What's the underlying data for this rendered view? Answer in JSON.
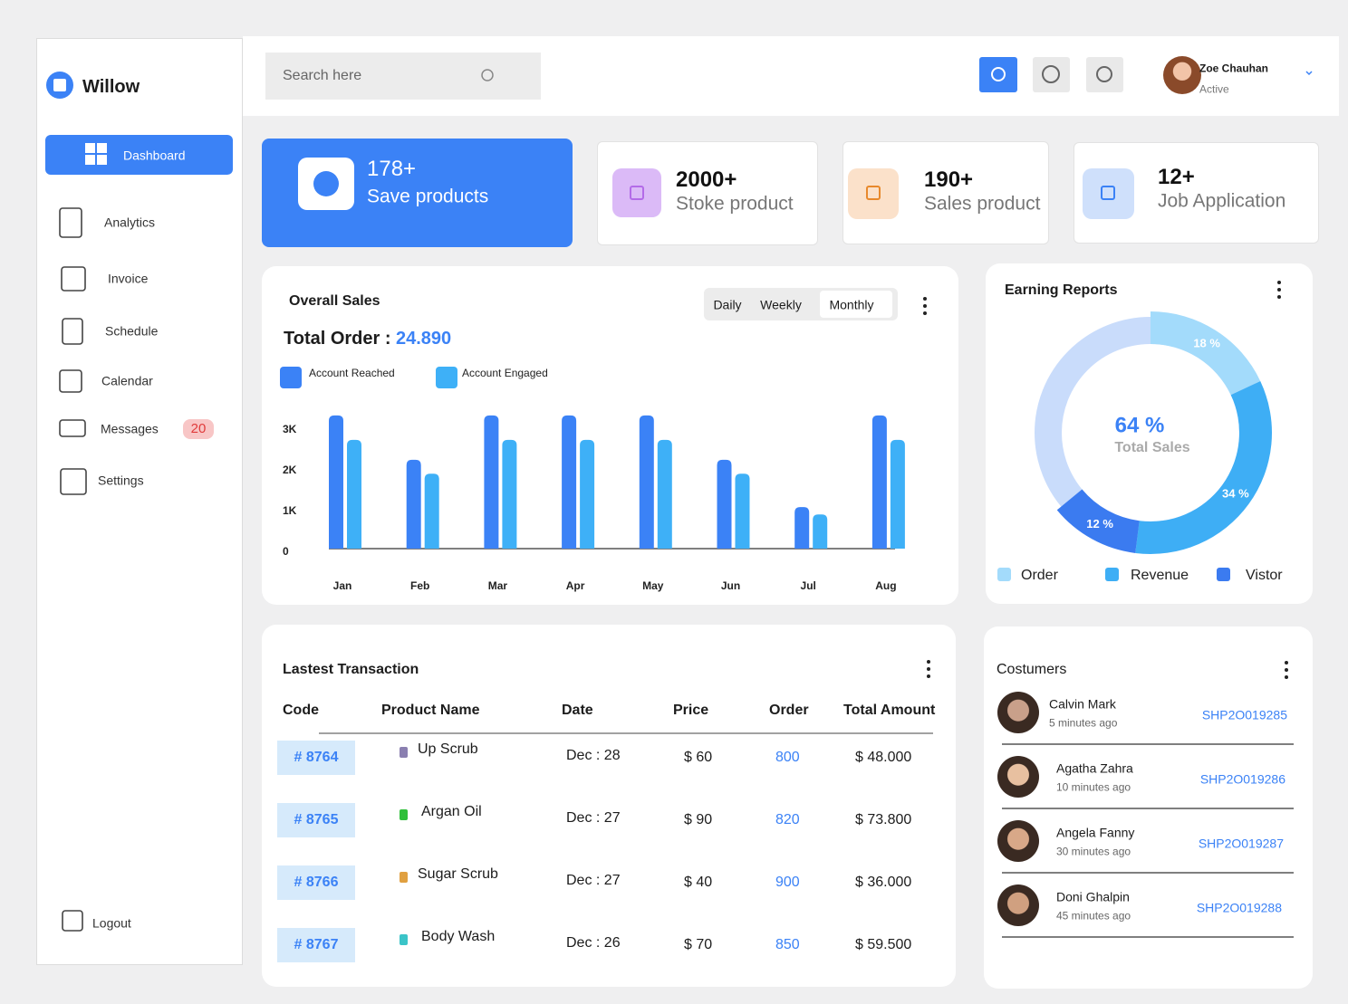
{
  "brand": "Willow",
  "search_placeholder": "Search here",
  "user": {
    "name": "Zoe Chauhan",
    "status": "Active"
  },
  "nav": [
    "Dashboard",
    "Analytics",
    "Invoice",
    "Schedule",
    "Calendar",
    "Messages",
    "Settings"
  ],
  "messages_badge": "20",
  "logout": "Logout",
  "stats": [
    {
      "value": "178+",
      "label": "Save products"
    },
    {
      "value": "2000+",
      "label": "Stoke product"
    },
    {
      "value": "190+",
      "label": "Sales product"
    },
    {
      "value": "12+",
      "label": "Job Application"
    }
  ],
  "chart_data": [
    {
      "type": "bar",
      "title": "Overall Sales",
      "tabs": [
        "Daily",
        "Weekly",
        "Monthly"
      ],
      "total_label": "Total Order :",
      "total_value": "24.890",
      "categories": [
        "Jan",
        "Feb",
        "Mar",
        "Apr",
        "May",
        "Jun",
        "Jul",
        "Aug"
      ],
      "series": [
        {
          "name": "Account Reached",
          "color": "#3b82f6",
          "values": [
            3270,
            2180,
            3270,
            3270,
            3270,
            2180,
            1020,
            3270
          ]
        },
        {
          "name": "Account Engaged",
          "color": "#3eb0f7",
          "values": [
            2670,
            1840,
            2670,
            2670,
            2670,
            1840,
            840,
            2670
          ]
        }
      ],
      "ylim": [
        0,
        3300
      ],
      "yticks": [
        0,
        {
          "value": 1000,
          "label": "1K"
        },
        {
          "value": 2000,
          "label": "2K"
        },
        {
          "value": 3000,
          "label": "3K"
        }
      ],
      "grid": false
    },
    {
      "type": "donut",
      "title": "Earning Reports",
      "center_label": "64 %",
      "center_sublabel": "Total Sales",
      "categories": [
        "Order",
        "Revenue",
        "Vistor"
      ],
      "values": [
        18,
        34,
        12
      ],
      "value_labels": [
        "18 %",
        "34 %",
        "12 %"
      ],
      "colors": [
        "#a3dbfb",
        "#3eaef5",
        "#3b7bf0"
      ]
    }
  ],
  "transactions": {
    "title": "Lastest Transaction",
    "columns": [
      "Code",
      "Product Name",
      "Date",
      "Price",
      "Order",
      "Total Amount"
    ],
    "rows": [
      [
        "# 8764",
        "Up Scrub",
        "Dec : 28",
        "$ 60",
        "800",
        "$ 48.000"
      ],
      [
        "# 8765",
        "Argan Oil",
        "Dec : 27",
        "$ 90",
        "820",
        "$ 73.800"
      ],
      [
        "# 8766",
        "Sugar Scrub",
        "Dec : 27",
        "$ 40",
        "900",
        "$ 36.000"
      ],
      [
        "# 8767",
        "Body Wash",
        "Dec : 26",
        "$ 70",
        "850",
        "$ 59.500"
      ]
    ]
  },
  "customers": {
    "title": "Costumers",
    "items": [
      {
        "name": "Calvin Mark",
        "time": "5 minutes ago",
        "code": "SHP2O019285"
      },
      {
        "name": "Agatha Zahra",
        "time": "10 minutes ago",
        "code": "SHP2O019286"
      },
      {
        "name": "Angela Fanny",
        "time": "30 minutes ago",
        "code": "SHP2O019287"
      },
      {
        "name": "Doni Ghalpin",
        "time": "45 minutes ago",
        "code": "SHP2O019288"
      }
    ]
  }
}
